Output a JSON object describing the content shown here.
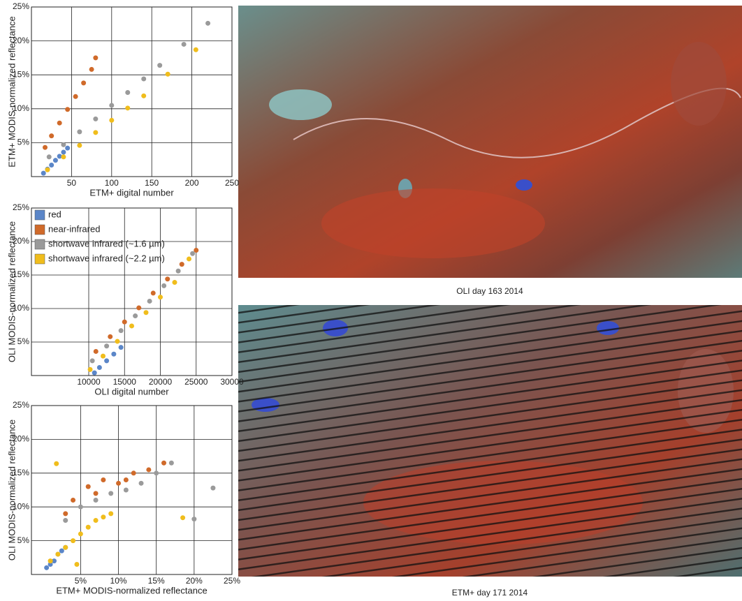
{
  "chart_data": [
    {
      "type": "scatter",
      "x_label": "ETM+ digital number",
      "y_label": "ETM+ MODIS-normalized reflectance",
      "xlim": [
        0,
        250
      ],
      "xticks": [
        50,
        100,
        150,
        200,
        250
      ],
      "ylim": [
        0,
        25
      ],
      "yticks": [
        {
          "value": 5,
          "label": "5%"
        },
        {
          "value": 10,
          "label": "10%"
        },
        {
          "value": 15,
          "label": "15%"
        },
        {
          "value": 20,
          "label": "20%"
        },
        {
          "value": 25,
          "label": "25%"
        }
      ],
      "grid": true,
      "series": [
        {
          "color": "#5b86c8",
          "x": [
            15,
            20,
            25,
            30,
            35,
            40,
            45
          ],
          "values": [
            0.5,
            1.1,
            1.7,
            2.4,
            3.0,
            3.6,
            4.2
          ]
        },
        {
          "color": "#d06a2a",
          "x": [
            17,
            25,
            35,
            45,
            55,
            65,
            75,
            80
          ],
          "values": [
            4.3,
            6.0,
            7.9,
            9.9,
            11.8,
            13.8,
            15.8,
            17.5
          ]
        },
        {
          "color": "#9a9a9a",
          "x": [
            22,
            40,
            60,
            80,
            100,
            120,
            140,
            160,
            190,
            220
          ],
          "values": [
            2.9,
            4.7,
            6.6,
            8.5,
            10.5,
            12.4,
            14.4,
            16.4,
            19.5,
            22.6
          ]
        },
        {
          "color": "#f0bd1c",
          "x": [
            20,
            40,
            60,
            80,
            100,
            120,
            140,
            170,
            205
          ],
          "values": [
            1.0,
            2.9,
            4.6,
            6.5,
            8.3,
            10.1,
            11.9,
            15.1,
            18.7
          ]
        }
      ]
    },
    {
      "type": "scatter",
      "x_label": "OLI digital number",
      "y_label": "OLI MODIS-normalized reflectance",
      "xlim": [
        2000,
        30000
      ],
      "xticks": [
        10000,
        15000,
        20000,
        25000,
        30000
      ],
      "ylim": [
        0,
        25
      ],
      "yticks": [
        {
          "value": 5,
          "label": "5%"
        },
        {
          "value": 10,
          "label": "10%"
        },
        {
          "value": 15,
          "label": "15%"
        },
        {
          "value": 20,
          "label": "20%"
        },
        {
          "value": 25,
          "label": "25%"
        }
      ],
      "grid": true,
      "legend": "top-left",
      "series": [
        {
          "name": "red",
          "color": "#5b86c8",
          "x": [
            10800,
            11500,
            12500,
            13500,
            14500
          ],
          "values": [
            0.4,
            1.2,
            2.2,
            3.2,
            4.2
          ]
        },
        {
          "name": "near-infrared",
          "color": "#d06a2a",
          "x": [
            11000,
            13000,
            15000,
            17000,
            19000,
            21000,
            23000,
            25000
          ],
          "values": [
            3.6,
            5.8,
            8.0,
            10.1,
            12.3,
            14.4,
            16.6,
            18.7
          ]
        },
        {
          "name": "shortwave infrared (~1.6 µm)",
          "color": "#9a9a9a",
          "x": [
            10500,
            12500,
            14500,
            16500,
            18500,
            20500,
            22500,
            24500
          ],
          "values": [
            2.2,
            4.4,
            6.7,
            8.9,
            11.1,
            13.4,
            15.6,
            18.2
          ]
        },
        {
          "name": "shortwave infrared (~2.2 µm)",
          "color": "#f0bd1c",
          "x": [
            10200,
            12000,
            14000,
            16000,
            18000,
            20000,
            22000,
            24000
          ],
          "values": [
            0.9,
            2.9,
            5.1,
            7.4,
            9.4,
            11.7,
            13.9,
            17.4
          ]
        }
      ]
    },
    {
      "type": "scatter",
      "x_label": "ETM+ MODIS-normalized reflectance",
      "y_label": "OLI MODIS-normalized reflectance",
      "xlim": [
        -1.5,
        25
      ],
      "xticks": [
        {
          "value": 5,
          "label": "5%"
        },
        {
          "value": 10,
          "label": "10%"
        },
        {
          "value": 15,
          "label": "15%"
        },
        {
          "value": 20,
          "label": "20%"
        },
        {
          "value": 25,
          "label": "25%"
        }
      ],
      "ylim": [
        0,
        25
      ],
      "yticks": [
        {
          "value": 5,
          "label": "5%"
        },
        {
          "value": 10,
          "label": "10%"
        },
        {
          "value": 15,
          "label": "15%"
        },
        {
          "value": 20,
          "label": "20%"
        },
        {
          "value": 25,
          "label": "25%"
        }
      ],
      "grid": true,
      "series": [
        {
          "color": "#5b86c8",
          "x": [
            0.5,
            1,
            1.5,
            2,
            2.5,
            3
          ],
          "values": [
            1,
            1.5,
            2,
            3,
            3.5,
            4
          ]
        },
        {
          "color": "#d06a2a",
          "x": [
            4,
            6,
            8,
            10,
            12,
            14,
            16,
            3,
            7,
            11
          ],
          "values": [
            11,
            13,
            14,
            13.5,
            15,
            15.5,
            16.5,
            9,
            12,
            14
          ]
        },
        {
          "color": "#9a9a9a",
          "x": [
            3,
            5,
            7,
            9,
            11,
            13,
            15,
            17,
            22.5,
            20
          ],
          "values": [
            8,
            10,
            11,
            12,
            12.5,
            13.5,
            15,
            16.5,
            12.8,
            8.2
          ]
        },
        {
          "color": "#f0bd1c",
          "x": [
            1,
            2,
            3,
            4,
            5,
            6,
            7,
            8,
            9,
            4.5,
            18.5,
            1.8
          ],
          "values": [
            2,
            3,
            4,
            5,
            6,
            7,
            8,
            8.5,
            9,
            1.5,
            8.4,
            16.4
          ]
        }
      ]
    }
  ],
  "images": [
    {
      "caption": "OLI day 163 2014"
    },
    {
      "caption": "ETM+ day 171 2014"
    }
  ]
}
